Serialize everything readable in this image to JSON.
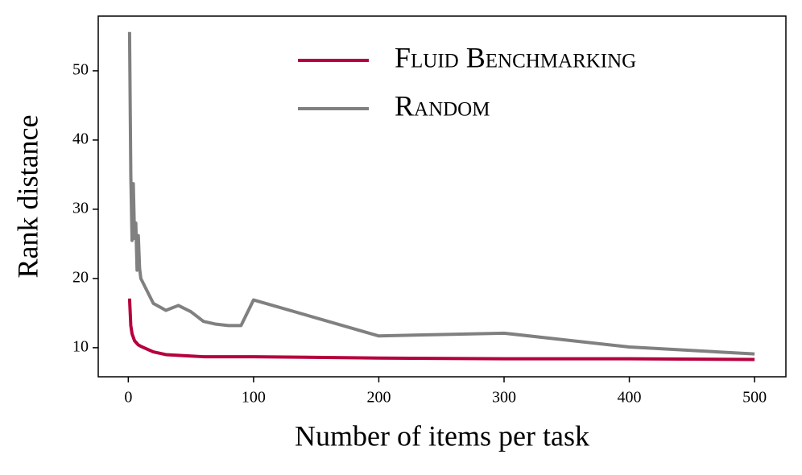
{
  "chart_data": {
    "type": "line",
    "xlabel": "Number of items per task",
    "ylabel": "Rank distance",
    "x": [
      1,
      2,
      3,
      4,
      5,
      6,
      7,
      8,
      9,
      10,
      20,
      30,
      40,
      50,
      60,
      70,
      80,
      90,
      100,
      200,
      300,
      400,
      500
    ],
    "series": [
      {
        "name": "Fluid Benchmarking",
        "color": "#b5003d",
        "values": [
          17.1,
          13.2,
          12,
          11.5,
          11,
          10.8,
          10.6,
          10.4,
          10.3,
          10.2,
          9.4,
          9.0,
          8.9,
          8.8,
          8.7,
          8.7,
          8.7,
          8.7,
          8.7,
          8.5,
          8.4,
          8.4,
          8.3
        ]
      },
      {
        "name": "Random",
        "color": "#808080",
        "values": [
          55.6,
          35,
          25.5,
          33.7,
          25.8,
          28,
          21.2,
          26.2,
          21.5,
          20,
          16.4,
          15.4,
          16.1,
          15.2,
          13.8,
          13.4,
          13.2,
          13.2,
          16.9,
          11.7,
          12.1,
          10.1,
          9.1
        ]
      }
    ],
    "xlim": [
      -24,
      525
    ],
    "ylim": [
      5.8,
      57.9
    ],
    "xticks": [
      0,
      100,
      200,
      300,
      400,
      500
    ],
    "yticks": [
      10,
      20,
      30,
      40,
      50
    ],
    "grid": false,
    "legend": "upper right"
  }
}
